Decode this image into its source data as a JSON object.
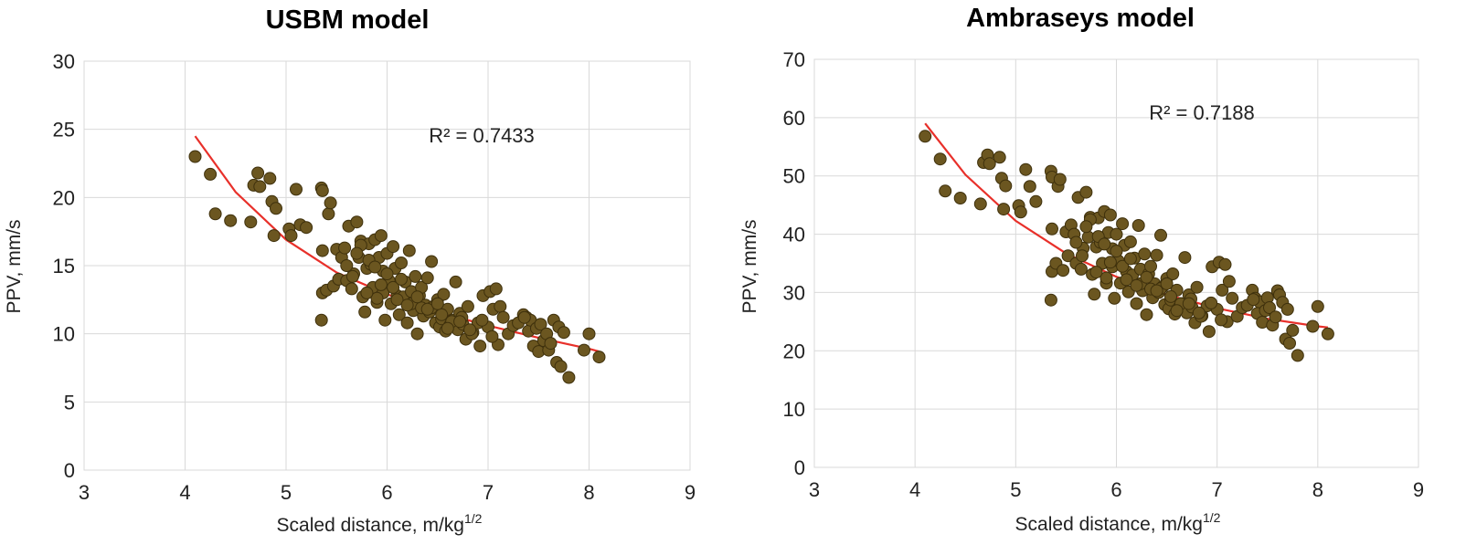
{
  "colors": {
    "marker": "#6b5620",
    "marker_edge": "#3e300c",
    "trendline": "#e8302a"
  },
  "chart_data": [
    {
      "type": "scatter",
      "title": "USBM model",
      "xlabel": "Scaled distance, m/kg",
      "xlabel_sup": "1/2",
      "ylabel": "PPV, mm/s",
      "xlim": [
        3,
        9
      ],
      "ylim": [
        0,
        30
      ],
      "xticks": [
        3,
        4,
        5,
        6,
        7,
        8,
        9
      ],
      "yticks": [
        0,
        5,
        10,
        15,
        20,
        25,
        30
      ],
      "grid": true,
      "annotation": "R² = 0.7433",
      "trendline": {
        "type": "power",
        "x": [
          4.1,
          4.5,
          5,
          5.5,
          6,
          6.5,
          7,
          7.5,
          8,
          8.1
        ],
        "y": [
          24.5,
          20.4,
          16.9,
          14.5,
          12.9,
          11.6,
          10.6,
          9.7,
          8.9,
          8.7
        ]
      },
      "x": [
        4.1,
        4.25,
        4.3,
        4.45,
        4.65,
        4.68,
        4.72,
        4.74,
        4.84,
        4.86,
        4.88,
        4.9,
        5.03,
        5.05,
        5.1,
        5.14,
        5.2,
        5.35,
        5.36,
        5.36,
        5.35,
        5.36,
        5.4,
        5.42,
        5.44,
        5.47,
        5.5,
        5.52,
        5.55,
        5.58,
        5.6,
        5.62,
        5.65,
        5.67,
        5.7,
        5.72,
        5.74,
        5.76,
        5.78,
        5.8,
        5.82,
        5.84,
        5.86,
        5.88,
        5.9,
        5.92,
        5.94,
        5.96,
        5.98,
        6.0,
        6.02,
        6.04,
        6.06,
        6.08,
        6.1,
        6.12,
        6.14,
        6.16,
        6.18,
        6.2,
        6.22,
        6.24,
        6.26,
        6.28,
        6.3,
        6.32,
        6.34,
        6.36,
        6.38,
        6.4,
        6.42,
        6.44,
        6.46,
        6.48,
        6.5,
        6.52,
        6.54,
        6.56,
        6.58,
        6.6,
        6.62,
        6.65,
        6.68,
        6.7,
        6.72,
        6.75,
        6.78,
        6.8,
        6.85,
        6.9,
        6.92,
        6.95,
        7.0,
        7.02,
        7.05,
        7.08,
        7.1,
        7.12,
        7.15,
        7.2,
        7.25,
        7.3,
        7.35,
        7.38,
        7.4,
        7.42,
        7.45,
        7.48,
        7.5,
        7.52,
        7.55,
        7.58,
        7.6,
        7.62,
        7.65,
        7.68,
        7.7,
        7.72,
        7.75,
        7.8,
        7.95,
        8.0,
        8.1,
        5.6,
        5.66,
        5.74,
        5.82,
        5.9,
        5.96,
        6.06,
        6.14,
        6.24,
        6.34,
        6.44,
        6.54,
        6.64,
        6.74,
        6.84,
        6.94,
        5.7,
        5.8,
        5.88,
        5.94,
        6.0,
        6.1,
        6.2,
        6.3,
        6.4,
        6.5,
        6.6,
        6.72,
        6.82,
        7.04,
        7.36
      ],
      "y": [
        23.0,
        21.7,
        18.8,
        18.3,
        18.2,
        20.9,
        21.8,
        20.8,
        21.4,
        19.7,
        17.2,
        19.2,
        17.7,
        17.2,
        20.6,
        18.0,
        17.8,
        20.7,
        20.5,
        13.0,
        11.0,
        16.1,
        13.2,
        18.8,
        19.6,
        13.5,
        16.2,
        14.0,
        15.6,
        16.3,
        13.9,
        17.9,
        13.3,
        14.4,
        18.2,
        15.6,
        16.8,
        12.7,
        11.6,
        14.8,
        16.6,
        15.1,
        13.4,
        16.9,
        12.3,
        15.6,
        17.2,
        13.0,
        11.0,
        15.9,
        13.9,
        12.2,
        16.4,
        14.8,
        12.8,
        11.4,
        15.2,
        12.7,
        13.8,
        10.8,
        16.1,
        13.1,
        11.7,
        14.2,
        10.0,
        12.8,
        13.4,
        11.3,
        12.1,
        14.1,
        11.6,
        15.3,
        12.0,
        10.8,
        12.5,
        10.5,
        11.1,
        12.9,
        10.2,
        11.8,
        10.6,
        11.0,
        13.8,
        10.3,
        11.5,
        10.7,
        9.6,
        12.0,
        10.1,
        10.8,
        9.1,
        12.8,
        10.5,
        13.1,
        11.8,
        13.3,
        9.2,
        12.0,
        11.2,
        10.0,
        10.6,
        10.8,
        11.4,
        11.2,
        10.2,
        11.0,
        9.1,
        10.4,
        8.7,
        10.7,
        9.5,
        10.0,
        8.8,
        9.3,
        11.0,
        7.9,
        10.5,
        7.6,
        10.1,
        6.8,
        8.8,
        10.0,
        8.3,
        15.0,
        14.2,
        16.5,
        15.4,
        12.6,
        14.6,
        13.4,
        14.0,
        12.2,
        11.9,
        11.9,
        11.4,
        10.9,
        11.2,
        10.0,
        11.0,
        15.9,
        13.0,
        14.9,
        13.6,
        14.4,
        12.5,
        12.1,
        12.7,
        11.8,
        12.2,
        10.4,
        10.9,
        10.3,
        9.8,
        11.2
      ]
    },
    {
      "type": "scatter",
      "title": "Ambraseys model",
      "xlabel": "Scaled distance, m/kg",
      "xlabel_sup": "1/2",
      "ylabel": "PPV, mm/s",
      "xlim": [
        3,
        9
      ],
      "ylim": [
        0,
        70
      ],
      "xticks": [
        3,
        4,
        5,
        6,
        7,
        8,
        9
      ],
      "yticks": [
        0,
        10,
        20,
        30,
        40,
        50,
        60,
        70
      ],
      "grid": true,
      "annotation": "R² = 0.7188",
      "trendline": {
        "type": "power",
        "x": [
          4.1,
          4.5,
          5,
          5.5,
          6,
          6.5,
          7,
          7.5,
          8,
          8.1
        ],
        "y": [
          59.0,
          50.2,
          42.3,
          36.7,
          32.7,
          29.6,
          27.3,
          25.5,
          24.2,
          24.0
        ]
      },
      "x": [
        4.1,
        4.25,
        4.3,
        4.45,
        4.65,
        4.68,
        4.72,
        4.74,
        4.84,
        4.86,
        4.88,
        4.9,
        5.03,
        5.05,
        5.1,
        5.14,
        5.2,
        5.35,
        5.36,
        5.36,
        5.35,
        5.36,
        5.4,
        5.42,
        5.44,
        5.47,
        5.5,
        5.52,
        5.55,
        5.58,
        5.6,
        5.62,
        5.65,
        5.67,
        5.7,
        5.72,
        5.74,
        5.76,
        5.78,
        5.8,
        5.82,
        5.84,
        5.86,
        5.88,
        5.9,
        5.92,
        5.94,
        5.96,
        5.98,
        6.0,
        6.02,
        6.04,
        6.06,
        6.08,
        6.1,
        6.12,
        6.14,
        6.16,
        6.18,
        6.2,
        6.22,
        6.24,
        6.26,
        6.28,
        6.3,
        6.32,
        6.34,
        6.36,
        6.38,
        6.4,
        6.42,
        6.44,
        6.46,
        6.48,
        6.5,
        6.52,
        6.54,
        6.56,
        6.58,
        6.6,
        6.62,
        6.65,
        6.68,
        6.7,
        6.72,
        6.75,
        6.78,
        6.8,
        6.85,
        6.9,
        6.92,
        6.95,
        7.0,
        7.02,
        7.05,
        7.08,
        7.1,
        7.12,
        7.15,
        7.2,
        7.25,
        7.3,
        7.35,
        7.38,
        7.4,
        7.42,
        7.45,
        7.48,
        7.5,
        7.52,
        7.55,
        7.58,
        7.6,
        7.62,
        7.65,
        7.68,
        7.7,
        7.72,
        7.75,
        7.8,
        7.95,
        8.0,
        8.1,
        5.6,
        5.66,
        5.74,
        5.82,
        5.9,
        5.96,
        6.06,
        6.14,
        6.24,
        6.34,
        6.44,
        6.54,
        6.64,
        6.74,
        6.84,
        6.94,
        5.7,
        5.8,
        5.88,
        5.94,
        6.0,
        6.1,
        6.2,
        6.3,
        6.4,
        6.5,
        6.6,
        6.72,
        6.82,
        7.04,
        7.36
      ],
      "y": [
        56.8,
        52.9,
        47.4,
        46.2,
        45.2,
        52.3,
        53.6,
        52.1,
        53.2,
        49.6,
        44.3,
        48.3,
        44.9,
        43.8,
        51.1,
        48.2,
        45.6,
        50.8,
        49.8,
        33.6,
        28.7,
        40.9,
        35.0,
        48.2,
        49.4,
        33.8,
        40.4,
        36.3,
        41.6,
        40.0,
        35.0,
        46.3,
        34.0,
        37.6,
        47.2,
        39.5,
        42.9,
        33.1,
        29.7,
        37.8,
        42.8,
        38.6,
        35.0,
        43.9,
        31.6,
        40.3,
        43.3,
        34.4,
        29.0,
        40.0,
        35.4,
        31.6,
        41.8,
        38.1,
        33.6,
        30.1,
        38.7,
        33.0,
        35.9,
        28.1,
        41.5,
        34.0,
        30.3,
        36.6,
        26.2,
        33.2,
        34.5,
        29.1,
        31.5,
        36.4,
        30.0,
        39.8,
        31.0,
        27.9,
        32.4,
        27.2,
        28.7,
        33.2,
        26.3,
        30.4,
        27.4,
        28.1,
        36.0,
        26.5,
        29.6,
        27.5,
        24.8,
        30.9,
        26.0,
        27.7,
        23.3,
        34.4,
        27.1,
        35.2,
        30.4,
        34.8,
        25.0,
        31.9,
        29.0,
        25.9,
        27.4,
        27.8,
        30.4,
        29.0,
        26.4,
        28.4,
        24.9,
        26.9,
        29.1,
        27.4,
        24.4,
        25.8,
        30.3,
        29.6,
        28.3,
        22.0,
        27.1,
        21.3,
        23.5,
        19.2,
        24.2,
        27.6,
        22.9,
        38.6,
        36.3,
        42.5,
        39.6,
        32.5,
        37.5,
        34.5,
        35.8,
        31.5,
        30.6,
        30.7,
        29.3,
        28.1,
        28.9,
        25.9,
        28.2,
        41.3,
        33.5,
        38.3,
        35.2,
        37.1,
        32.2,
        31.2,
        32.6,
        30.3,
        31.5,
        26.9,
        28.1,
        26.5,
        25.3,
        28.8
      ]
    }
  ]
}
